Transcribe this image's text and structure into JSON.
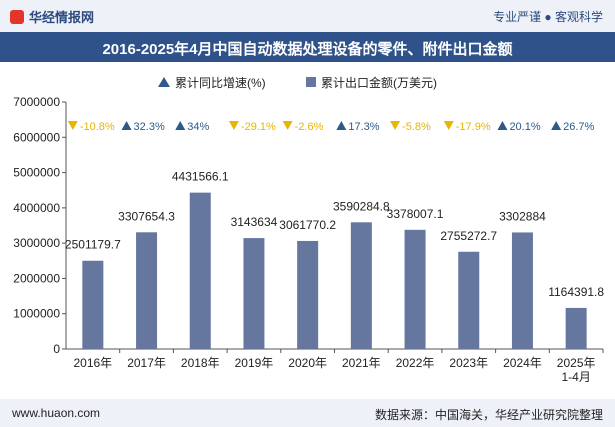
{
  "header": {
    "brand": "华经情报网",
    "tagline": "专业严谨 ● 客观科学"
  },
  "title": "2016-2025年4月中国自动数据处理设备的零件、附件出口金额",
  "footer": {
    "website": "www.huaon.com",
    "source": "数据来源：中国海关，华经产业研究院整理"
  },
  "chart_data": {
    "type": "bar",
    "categories": [
      "2016年",
      "2017年",
      "2018年",
      "2019年",
      "2020年",
      "2021年",
      "2022年",
      "2023年",
      "2024年",
      "2025年\n1-4月"
    ],
    "series": [
      {
        "name": "累计出口金额(万美元)",
        "values": [
          2501179.7,
          3307654.3,
          4431566.1,
          3143634,
          3061770.2,
          3590284.8,
          3378007.1,
          2755272.7,
          3302884,
          1164391.8
        ],
        "value_labels": [
          "2501179.7",
          "3307654.3",
          "4431566.1",
          "3143634",
          "3061770.2",
          "3590284.8",
          "3378007.1",
          "2755272.7",
          "3302884",
          "1164391.8"
        ]
      },
      {
        "name": "累计同比增速(%)",
        "values": [
          -10.8,
          32.3,
          34,
          -29.1,
          -2.6,
          17.3,
          -5.8,
          -17.9,
          20.1,
          26.7
        ],
        "value_labels": [
          "-10.8%",
          "32.3%",
          "34%",
          "-29.1%",
          "-2.6%",
          "17.3%",
          "-5.8%",
          "-17.9%",
          "20.1%",
          "26.7%"
        ]
      }
    ],
    "y_ticks": [
      "0",
      "1000000",
      "2000000",
      "3000000",
      "4000000",
      "5000000",
      "6000000",
      "7000000"
    ],
    "ylim": [
      0,
      7000000
    ],
    "legend_position": "top-center",
    "colors": {
      "bar": "#65779f",
      "up": "#2d5a88",
      "down": "#e8b500",
      "title_bg": "#30528a"
    }
  }
}
